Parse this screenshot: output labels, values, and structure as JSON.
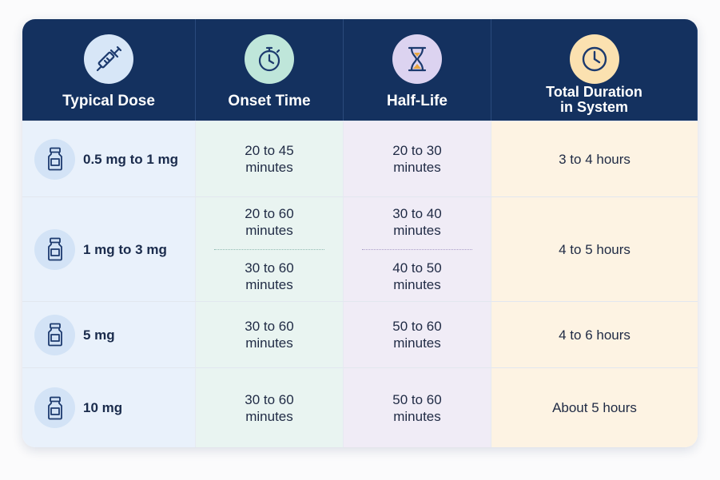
{
  "headers": [
    {
      "label": "Typical Dose",
      "icon": "syringe-icon",
      "icon_bg": "#d7e6f7"
    },
    {
      "label": "Onset Time",
      "icon": "stopwatch-icon",
      "icon_bg": "#bfe6da"
    },
    {
      "label": "Half-Life",
      "icon": "hourglass-icon",
      "icon_bg": "#dcd3f0"
    },
    {
      "label_line1": "Total Duration",
      "label_line2": "in System",
      "icon": "clock-icon",
      "icon_bg": "#fbe1b0"
    }
  ],
  "rows": [
    {
      "dose": "0.5 mg to 1 mg",
      "onset": [
        "20 to 45",
        "minutes"
      ],
      "half_life": [
        "20 to 30",
        "minutes"
      ],
      "total": "3 to 4 hours"
    },
    {
      "dose": "1 mg to 3 mg",
      "onset_a": [
        "20 to 60",
        "minutes"
      ],
      "onset_b": [
        "30 to 60",
        "minutes"
      ],
      "half_life_a": [
        "30 to 40",
        "minutes"
      ],
      "half_life_b": [
        "40 to 50",
        "minutes"
      ],
      "total": "4 to 5 hours"
    },
    {
      "dose": "5 mg",
      "onset": [
        "30 to 60",
        "minutes"
      ],
      "half_life": [
        "50 to 60",
        "minutes"
      ],
      "total": "4 to 6 hours"
    },
    {
      "dose": "10 mg",
      "onset": [
        "30 to 60",
        "minutes"
      ],
      "half_life": [
        "50 to 60",
        "minutes"
      ],
      "total": "About 5 hours"
    }
  ],
  "colors": {
    "header_bg": "#14315f",
    "dose_col": "#e9f1fb",
    "onset_col": "#e9f4f1",
    "half_life_col": "#f0ecf6",
    "total_col": "#fdf3e3"
  }
}
